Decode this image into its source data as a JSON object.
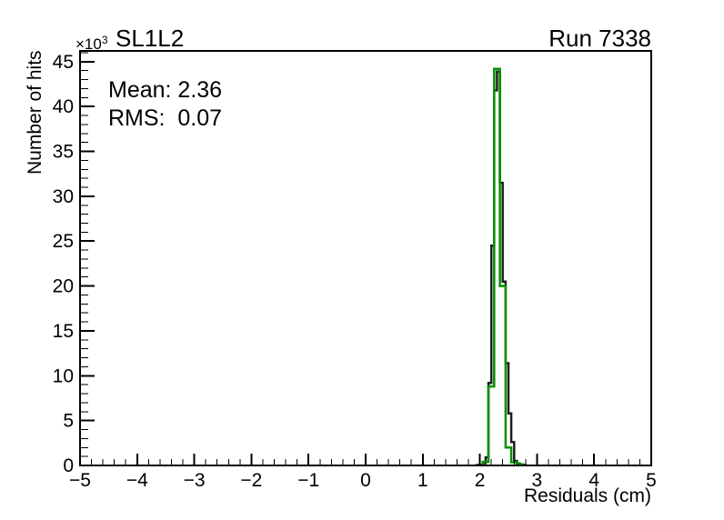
{
  "header": {
    "exponent_mantissa": "×10",
    "exponent_power": "3",
    "title": "SL1L2",
    "run_label": "Run 7338"
  },
  "stats": {
    "mean_line": "Mean: 2.36",
    "rms_line": "RMS:  0.07"
  },
  "axes": {
    "x_title": "Residuals (cm)",
    "y_title": "Number of hits",
    "x_tick_labels": [
      "−5",
      "−4",
      "−3",
      "−2",
      "−1",
      "0",
      "1",
      "2",
      "3",
      "4",
      "5"
    ],
    "y_tick_labels": [
      "0",
      "5",
      "10",
      "15",
      "20",
      "25",
      "30",
      "35",
      "40",
      "45"
    ]
  },
  "chart_data": {
    "type": "line",
    "variant": "step-histogram-outline",
    "title": "SL1L2",
    "corner_label": "Run 7338",
    "xlabel": "Residuals (cm)",
    "ylabel": "Number of hits",
    "y_unit_multiplier": "×10³",
    "xlim": [
      -5,
      5
    ],
    "ylim": [
      0,
      46.2
    ],
    "x_major_tick_step": 1,
    "x_minor_tick_step": 0.2,
    "y_major_tick_step": 5,
    "y_minor_tick_step": 1,
    "grid": false,
    "legend": false,
    "annotations": {
      "mean": 2.36,
      "rms": 0.07
    },
    "values_unit": "thousands of hits",
    "series": [
      {
        "name": "black-histogram",
        "color": "#1f1f1f",
        "bin_edges": [
          2.0,
          2.05,
          2.1,
          2.15,
          2.2,
          2.25,
          2.3,
          2.35,
          2.4,
          2.45,
          2.5,
          2.55,
          2.6,
          2.65,
          2.7,
          2.75,
          2.8
        ],
        "values_thousands": [
          0.08,
          0.25,
          0.9,
          9.2,
          24.5,
          41.8,
          43.9,
          31.5,
          20.5,
          11.4,
          5.8,
          2.6,
          0.5,
          0.2,
          0.1,
          0.05
        ]
      },
      {
        "name": "green-histogram",
        "color": "#009300",
        "bin_edges": [
          1.95,
          2.05,
          2.15,
          2.25,
          2.35,
          2.45,
          2.55,
          2.65,
          2.75
        ],
        "values_thousands": [
          0.08,
          0.4,
          8.8,
          44.2,
          20.0,
          2.0,
          0.35,
          0.12
        ]
      }
    ]
  }
}
